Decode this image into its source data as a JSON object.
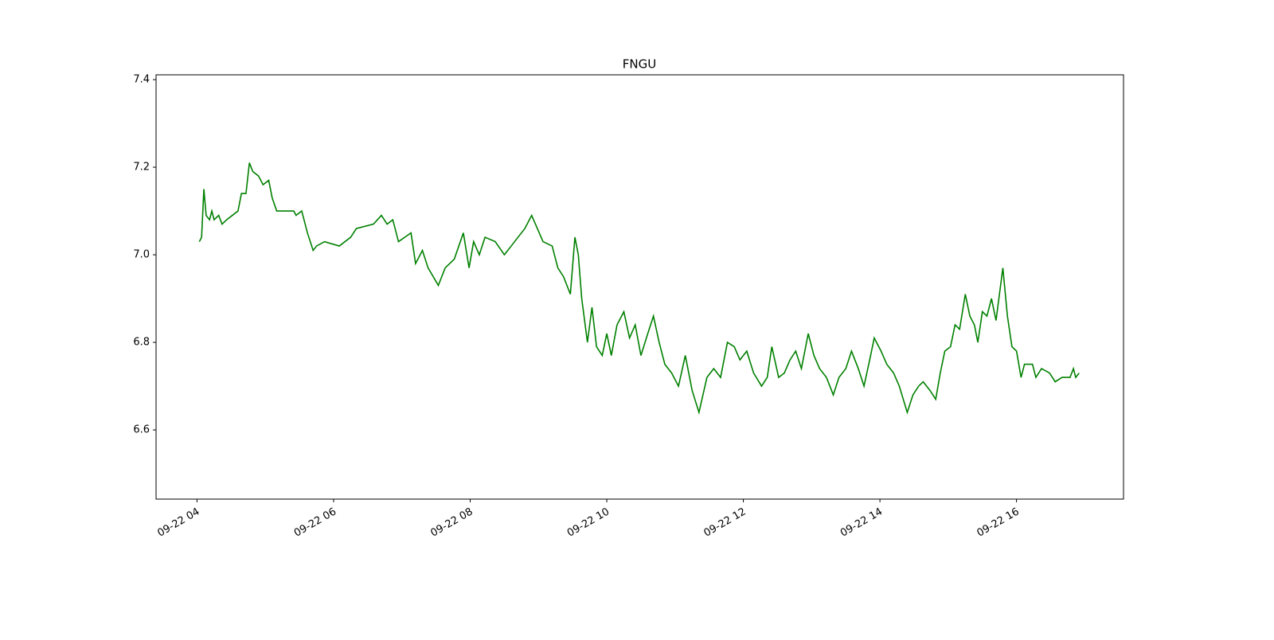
{
  "chart_data": {
    "type": "line",
    "title": "FNGU",
    "x": [
      "09-22 04:02",
      "09-22 04:04",
      "09-22 04:06",
      "09-22 04:08",
      "09-22 04:11",
      "09-22 04:13",
      "09-22 04:15",
      "09-22 04:19",
      "09-22 04:22",
      "09-22 04:26",
      "09-22 04:31",
      "09-22 04:36",
      "09-22 04:39",
      "09-22 04:43",
      "09-22 04:46",
      "09-22 04:49",
      "09-22 04:54",
      "09-22 04:58",
      "09-22 05:03",
      "09-22 05:06",
      "09-22 05:10",
      "09-22 05:25",
      "09-22 05:27",
      "09-22 05:32",
      "09-22 05:37",
      "09-22 05:42",
      "09-22 05:45",
      "09-22 05:52",
      "09-22 06:05",
      "09-22 06:15",
      "09-22 06:20",
      "09-22 06:35",
      "09-22 06:42",
      "09-22 06:47",
      "09-22 06:52",
      "09-22 06:57",
      "09-22 07:08",
      "09-22 07:12",
      "09-22 07:18",
      "09-22 07:23",
      "09-22 07:32",
      "09-22 07:38",
      "09-22 07:46",
      "09-22 07:54",
      "09-22 07:59",
      "09-22 08:03",
      "09-22 08:08",
      "09-22 08:13",
      "09-22 08:22",
      "09-22 08:30",
      "09-22 08:36",
      "09-22 08:42",
      "09-22 08:48",
      "09-22 08:54",
      "09-22 08:59",
      "09-22 09:04",
      "09-22 09:12",
      "09-22 09:17",
      "09-22 09:22",
      "09-22 09:28",
      "09-22 09:32",
      "09-22 09:35",
      "09-22 09:38",
      "09-22 09:43",
      "09-22 09:47",
      "09-22 09:51",
      "09-22 09:56",
      "09-22 10:00",
      "09-22 10:04",
      "09-22 10:09",
      "09-22 10:15",
      "09-22 10:20",
      "09-22 10:25",
      "09-22 10:30",
      "09-22 10:36",
      "09-22 10:41",
      "09-22 10:46",
      "09-22 10:51",
      "09-22 10:57",
      "09-22 11:03",
      "09-22 11:09",
      "09-22 11:15",
      "09-22 11:21",
      "09-22 11:28",
      "09-22 11:34",
      "09-22 11:40",
      "09-22 11:46",
      "09-22 11:52",
      "09-22 11:57",
      "09-22 12:03",
      "09-22 12:09",
      "09-22 12:16",
      "09-22 12:21",
      "09-22 12:25",
      "09-22 12:31",
      "09-22 12:36",
      "09-22 12:41",
      "09-22 12:46",
      "09-22 12:51",
      "09-22 12:57",
      "09-22 13:02",
      "09-22 13:07",
      "09-22 13:13",
      "09-22 13:19",
      "09-22 13:24",
      "09-22 13:30",
      "09-22 13:35",
      "09-22 13:41",
      "09-22 13:46",
      "09-22 13:51",
      "09-22 13:55",
      "09-22 14:01",
      "09-22 14:06",
      "09-22 14:12",
      "09-22 14:17",
      "09-22 14:24",
      "09-22 14:29",
      "09-22 14:34",
      "09-22 14:38",
      "09-22 14:44",
      "09-22 14:49",
      "09-22 14:53",
      "09-22 14:57",
      "09-22 15:02",
      "09-22 15:06",
      "09-22 15:10",
      "09-22 15:15",
      "09-22 15:19",
      "09-22 15:23",
      "09-22 15:26",
      "09-22 15:30",
      "09-22 15:34",
      "09-22 15:38",
      "09-22 15:42",
      "09-22 15:48",
      "09-22 15:52",
      "09-22 15:56",
      "09-22 16:00",
      "09-22 16:04",
      "09-22 16:07",
      "09-22 16:14",
      "09-22 16:17",
      "09-22 16:22",
      "09-22 16:29",
      "09-22 16:34",
      "09-22 16:40",
      "09-22 16:47",
      "09-22 16:50",
      "09-22 16:52",
      "09-22 16:55"
    ],
    "series": [
      {
        "color": "#008000",
        "values": [
          7.03,
          7.04,
          7.15,
          7.09,
          7.08,
          7.1,
          7.08,
          7.09,
          7.07,
          7.08,
          7.09,
          7.1,
          7.14,
          7.14,
          7.21,
          7.19,
          7.18,
          7.16,
          7.17,
          7.13,
          7.1,
          7.1,
          7.09,
          7.1,
          7.05,
          7.01,
          7.02,
          7.03,
          7.02,
          7.04,
          7.06,
          7.07,
          7.09,
          7.07,
          7.08,
          7.03,
          7.05,
          6.98,
          7.01,
          6.97,
          6.93,
          6.97,
          6.99,
          7.05,
          6.97,
          7.03,
          7.0,
          7.04,
          7.03,
          7.0,
          7.02,
          7.04,
          7.06,
          7.09,
          7.06,
          7.03,
          7.02,
          6.97,
          6.95,
          6.91,
          7.04,
          7.0,
          6.9,
          6.8,
          6.88,
          6.79,
          6.77,
          6.82,
          6.77,
          6.84,
          6.87,
          6.81,
          6.84,
          6.77,
          6.82,
          6.86,
          6.8,
          6.75,
          6.73,
          6.7,
          6.77,
          6.69,
          6.64,
          6.72,
          6.74,
          6.72,
          6.8,
          6.79,
          6.76,
          6.78,
          6.73,
          6.7,
          6.72,
          6.79,
          6.72,
          6.73,
          6.76,
          6.78,
          6.74,
          6.82,
          6.77,
          6.74,
          6.72,
          6.68,
          6.72,
          6.74,
          6.78,
          6.74,
          6.7,
          6.76,
          6.81,
          6.78,
          6.75,
          6.73,
          6.7,
          6.64,
          6.68,
          6.7,
          6.71,
          6.69,
          6.67,
          6.73,
          6.78,
          6.79,
          6.84,
          6.83,
          6.91,
          6.86,
          6.84,
          6.8,
          6.87,
          6.86,
          6.9,
          6.85,
          6.97,
          6.86,
          6.79,
          6.78,
          6.72,
          6.75,
          6.75,
          6.72,
          6.74,
          6.73,
          6.71,
          6.72,
          6.72,
          6.74,
          6.72,
          6.73
        ]
      }
    ],
    "xlim": [
      "09-22 03:24",
      "09-22 17:34"
    ],
    "xticks": [
      "09-22 04",
      "09-22 06",
      "09-22 08",
      "09-22 10",
      "09-22 12",
      "09-22 14",
      "09-22 16"
    ],
    "ylim": [
      6.442,
      7.411
    ],
    "yticks": [
      6.6,
      6.8,
      {
        "value": 7,
        "label": "7.0"
      },
      7.2,
      7.4
    ]
  }
}
